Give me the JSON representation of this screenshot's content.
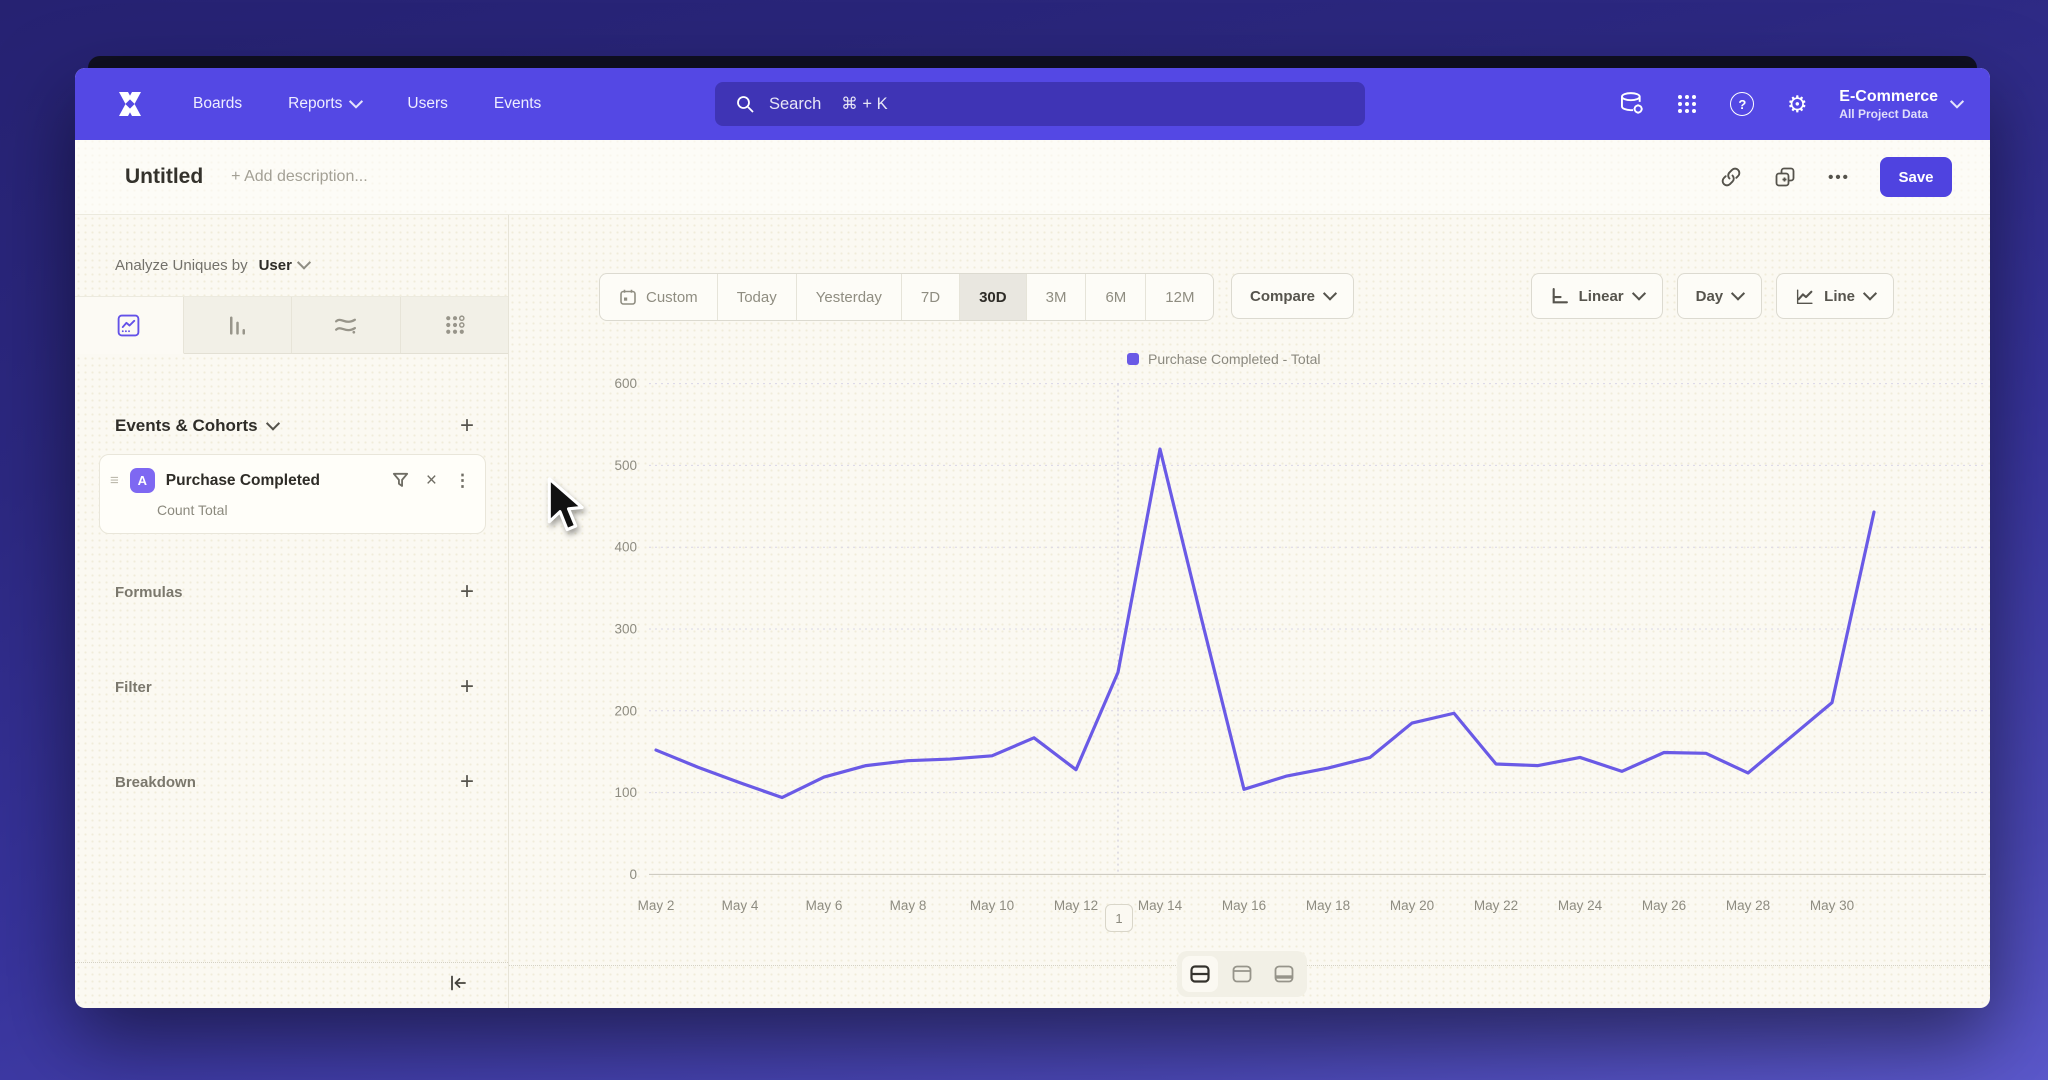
{
  "colors": {
    "accent": "#5448e4",
    "save_button": "#4f43e0",
    "line": "#6a5ae6",
    "canvas": "#fbf9f2"
  },
  "nav": {
    "items": [
      {
        "label": "Boards",
        "dropdown": false
      },
      {
        "label": "Reports",
        "dropdown": true
      },
      {
        "label": "Users",
        "dropdown": false
      },
      {
        "label": "Events",
        "dropdown": false
      }
    ],
    "search": {
      "placeholder": "Search",
      "shortcut": "⌘ + K"
    },
    "help_glyph": "?",
    "gear_glyph": "⚙",
    "project": {
      "name": "E-Commerce",
      "scope": "All Project Data"
    }
  },
  "toolbar": {
    "title": "Untitled",
    "add_description": "+ Add description...",
    "more_label": "•••",
    "save_label": "Save"
  },
  "sidebar": {
    "analyze_label": "Analyze Uniques by",
    "analyze_value": "User",
    "events_header": "Events & Cohorts",
    "add_glyph": "+",
    "event": {
      "drag_glyph": "≡",
      "badge": "A",
      "name": "Purchase Completed",
      "metric": "Count Total",
      "close_glyph": "×",
      "kebab_glyph": "⋮"
    },
    "sections": [
      {
        "label": "Formulas"
      },
      {
        "label": "Filter"
      },
      {
        "label": "Breakdown"
      }
    ]
  },
  "controls": {
    "date_ranges": [
      "Custom",
      "Today",
      "Yesterday",
      "7D",
      "30D",
      "3M",
      "6M",
      "12M"
    ],
    "active_range": "30D",
    "compare_label": "Compare",
    "scale_label": "Linear",
    "interval_label": "Day",
    "charttype_label": "Line"
  },
  "chart_data": {
    "type": "line",
    "legend": "Purchase Completed - Total",
    "series_name": "Purchase Completed",
    "metric": "Total",
    "line_color": "#6a5ae6",
    "categories": [
      "May 2",
      "May 3",
      "May 4",
      "May 5",
      "May 6",
      "May 7",
      "May 8",
      "May 9",
      "May 10",
      "May 11",
      "May 12",
      "May 13",
      "May 14",
      "May 15",
      "May 16",
      "May 17",
      "May 18",
      "May 19",
      "May 20",
      "May 21",
      "May 22",
      "May 23",
      "May 24",
      "May 25",
      "May 26",
      "May 27",
      "May 28",
      "May 29",
      "May 30",
      "May 31"
    ],
    "values": [
      152,
      131,
      112,
      94,
      119,
      133,
      139,
      141,
      145,
      167,
      128,
      247,
      520,
      310,
      104,
      120,
      130,
      143,
      185,
      197,
      135,
      133,
      143,
      126,
      149,
      148,
      124,
      167,
      210,
      443
    ],
    "ylim": [
      0,
      600
    ],
    "yticks": [
      0,
      100,
      200,
      300,
      400,
      500,
      600
    ],
    "xtick_every": 2,
    "grid": "horizontal-dotted",
    "legend_position": "top-center",
    "annotation": {
      "label": "1",
      "category": "May 13"
    }
  }
}
